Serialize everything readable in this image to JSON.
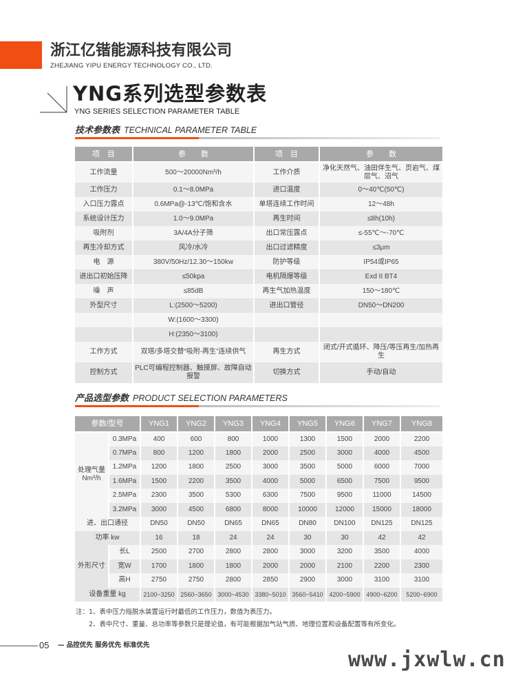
{
  "header": {
    "company_cn": "浙江亿锴能源科技有限公司",
    "company_en": "ZHEJIANG YIPU ENERGY TECHNOLOGY CO., LTD.",
    "brand_color": "#f04e12"
  },
  "title": {
    "main": "YNG系列选型参数表",
    "sub": "YNG SERIES SELECTION PARAMETER TABLE"
  },
  "tech": {
    "title_cn": "技术参数表",
    "title_en": "TECHNICAL PARAMETER TABLE",
    "headers": [
      "项　目",
      "参　　数",
      "项　目",
      "参　　数"
    ],
    "rows": [
      [
        "工作流量",
        "500～20000Nm³/h",
        "工作介质",
        "净化天然气、油田伴生气、页岩气、煤层气、沼气"
      ],
      [
        "工作压力",
        "0.1～8.0MPa",
        "进口温度",
        "0～40℃(50℃)"
      ],
      [
        "入口压力露点",
        "0.6MPa@-13℃/饱和含水",
        "单塔连续工作时间",
        "12～48h"
      ],
      [
        "系统设计压力",
        "1.0～9.0MPa",
        "再生时间",
        "≤8h(10h)"
      ],
      [
        "吸附剂",
        "3A/4A分子筛",
        "出口常压露点",
        "≤-55℃～-70℃"
      ],
      [
        "再生冷却方式",
        "风冷/水冷",
        "出口过滤精度",
        "≤3μm"
      ],
      [
        "电　源",
        "380V/50Hz/12.30～150kw",
        "防护等级",
        "IP54或IP65"
      ],
      [
        "进出口初始压降",
        "≤50kpa",
        "电机隔爆等级",
        "Exd II BT4"
      ],
      [
        "噪　声",
        "≤85dB",
        "再生气加热温度",
        "150～180℃"
      ],
      [
        "外型尺寸",
        "L:(2500～5200)",
        "进出口管径",
        "DN50～DN200"
      ],
      [
        "",
        "W:(1600～3300)",
        "",
        ""
      ],
      [
        "",
        "H:(2350～3100)",
        "",
        ""
      ],
      [
        "工作方式",
        "双塔/多塔交替“吸附-再生”连续供气",
        "再生方式",
        "闭式/开式循环、降压/等压再生/加热再生"
      ],
      [
        "控制方式",
        "PLC可编程控制器、触摸屏、故障自动报警",
        "切换方式",
        "手动/自动"
      ]
    ]
  },
  "product": {
    "title_cn": "产品选型参数",
    "title_en": "PRODUCT SELECTION  PARAMETERS",
    "corner": "参数/型号",
    "models": [
      "YNG1",
      "YNG2",
      "YNG3",
      "YNG4",
      "YNG5",
      "YNG6",
      "YNG7",
      "YNG8"
    ],
    "flow_label": "处理气量 Nm³/h",
    "flow": [
      {
        "p": "0.3MPa",
        "v": [
          "400",
          "600",
          "800",
          "1000",
          "1300",
          "1500",
          "2000",
          "2200"
        ]
      },
      {
        "p": "0.7MPa",
        "v": [
          "800",
          "1200",
          "1800",
          "2000",
          "2500",
          "3000",
          "4000",
          "4500"
        ]
      },
      {
        "p": "1.2MPa",
        "v": [
          "1200",
          "1800",
          "2500",
          "3000",
          "3500",
          "5000",
          "6000",
          "7000"
        ]
      },
      {
        "p": "1.6MPa",
        "v": [
          "1500",
          "2200",
          "3500",
          "4000",
          "5000",
          "6500",
          "7500",
          "9500"
        ]
      },
      {
        "p": "2.5MPa",
        "v": [
          "2300",
          "3500",
          "5300",
          "6300",
          "7500",
          "9500",
          "11000",
          "14500"
        ]
      },
      {
        "p": "3.2MPa",
        "v": [
          "3000",
          "4500",
          "6800",
          "8000",
          "10000",
          "12000",
          "15000",
          "18000"
        ]
      }
    ],
    "port": {
      "label": "进、出口通径",
      "v": [
        "DN50",
        "DN50",
        "DN65",
        "DN65",
        "DN80",
        "DN100",
        "DN125",
        "DN125"
      ]
    },
    "power": {
      "label": "功率 kw",
      "v": [
        "16",
        "18",
        "24",
        "24",
        "30",
        "30",
        "42",
        "42"
      ]
    },
    "dim_label": "外形尺寸",
    "dims": [
      {
        "k": "长L",
        "v": [
          "2500",
          "2700",
          "2800",
          "2800",
          "3000",
          "3200",
          "3500",
          "4000"
        ]
      },
      {
        "k": "宽W",
        "v": [
          "1700",
          "1800",
          "1800",
          "2000",
          "2000",
          "2100",
          "2200",
          "2300"
        ]
      },
      {
        "k": "高H",
        "v": [
          "2750",
          "2750",
          "2800",
          "2850",
          "2900",
          "3000",
          "3100",
          "3100"
        ]
      }
    ],
    "weight": {
      "label": "设备重量 kg",
      "v": [
        "2100~3250",
        "2560~3650",
        "3000~4530",
        "3380~5010",
        "3560~5410",
        "4200~5900",
        "4900~6200",
        "5200~6900"
      ]
    }
  },
  "notes": [
    "注：1、表中压力指脱水装置运行时最低的工作压力，数值为表压力。",
    "2、表中尺寸、重量、总功率等参数只是理论值，有可能根据加气站气质、地理位置和设备配置等有所变化。"
  ],
  "footer": {
    "page": "05",
    "slogan": "— 品控优先 服务优先 标准优先"
  },
  "watermark": "www.jxwlw.cn"
}
